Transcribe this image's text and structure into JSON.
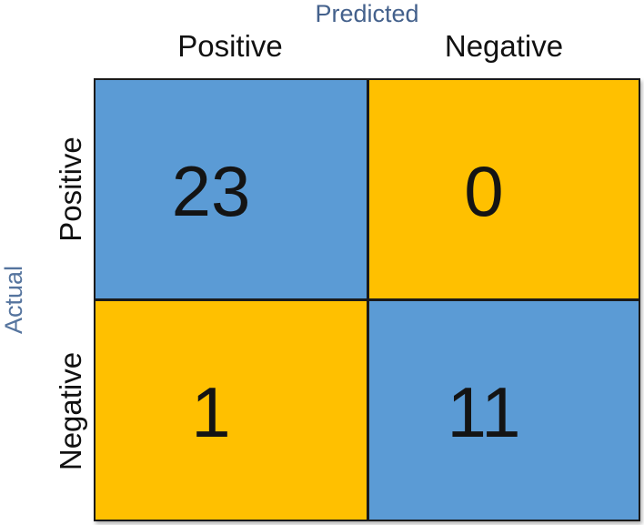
{
  "chart_data": {
    "type": "heatmap",
    "subtype": "confusion-matrix",
    "title": "",
    "x_axis_label": "Predicted",
    "y_axis_label": "Actual",
    "columns": [
      "Positive",
      "Negative"
    ],
    "rows": [
      "Positive",
      "Negative"
    ],
    "matrix": [
      [
        23,
        0
      ],
      [
        1,
        11
      ]
    ],
    "cells": [
      {
        "actual": "Positive",
        "predicted": "Positive",
        "value": "23",
        "role": "true-positive",
        "color": "#5B9BD5"
      },
      {
        "actual": "Positive",
        "predicted": "Negative",
        "value": "0",
        "role": "false-negative",
        "color": "#FFC000"
      },
      {
        "actual": "Negative",
        "predicted": "Positive",
        "value": "1",
        "role": "false-positive",
        "color": "#FFC000"
      },
      {
        "actual": "Negative",
        "predicted": "Negative",
        "value": "11",
        "role": "true-negative",
        "color": "#5B9BD5"
      }
    ],
    "colors": {
      "diagonal_cell": "#5B9BD5",
      "off_diagonal_cell": "#FFC000",
      "axis_title_text": "#44618C",
      "header_text": "#111111",
      "cell_value_text": "#141414",
      "grid_line": "#1A1A1A",
      "background": "#FFFFFF"
    },
    "legend": "none",
    "grid": "on"
  }
}
